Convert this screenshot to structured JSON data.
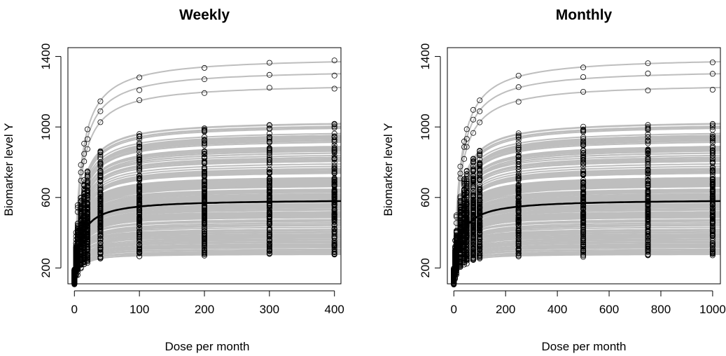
{
  "chart_data": [
    {
      "type": "scatter",
      "title": "Weekly",
      "xlabel": "Dose per month",
      "ylabel": "Biomarker level Y",
      "xlim": [
        -10,
        410
      ],
      "ylim": [
        110,
        1450
      ],
      "xticks": [
        0,
        100,
        200,
        300,
        400
      ],
      "yticks": [
        200,
        600,
        1000,
        1400
      ],
      "dose_levels": [
        0,
        2.5,
        5,
        10,
        15,
        20,
        40,
        100,
        200,
        300,
        400
      ],
      "ed50": 10,
      "typical_curve": {
        "name": "",
        "emax_model": {
          "e0": 130,
          "emax": 460,
          "ed50": 10
        },
        "points": [
          [
            0,
            130
          ],
          [
            10,
            360
          ],
          [
            40,
            498
          ],
          [
            100,
            548
          ],
          [
            200,
            568
          ],
          [
            300,
            575
          ],
          [
            400,
            578
          ]
        ]
      },
      "individual_curves_range": {
        "e0": [
          110,
          190
        ],
        "plateau": [
          270,
          1400
        ]
      },
      "grid": false,
      "legend": "none"
    },
    {
      "type": "scatter",
      "title": "Monthly",
      "xlabel": "Dose per month",
      "ylabel": "Biomarker level Y",
      "xlim": [
        -25,
        1030
      ],
      "ylim": [
        110,
        1450
      ],
      "xticks": [
        0,
        200,
        400,
        600,
        800,
        1000
      ],
      "yticks": [
        200,
        600,
        1000,
        1400
      ],
      "dose_levels": [
        0,
        5,
        10,
        25,
        40,
        50,
        75,
        100,
        250,
        500,
        750,
        1000
      ],
      "ed50": 25,
      "typical_curve": {
        "name": "",
        "emax_model": {
          "e0": 130,
          "emax": 460,
          "ed50": 25
        },
        "points": [
          [
            0,
            130
          ],
          [
            25,
            360
          ],
          [
            100,
            498
          ],
          [
            250,
            548
          ],
          [
            500,
            568
          ],
          [
            750,
            575
          ],
          [
            1000,
            578
          ]
        ]
      },
      "individual_curves_range": {
        "e0": [
          110,
          190
        ],
        "plateau": [
          270,
          1400
        ]
      },
      "grid": false,
      "legend": "none"
    }
  ]
}
